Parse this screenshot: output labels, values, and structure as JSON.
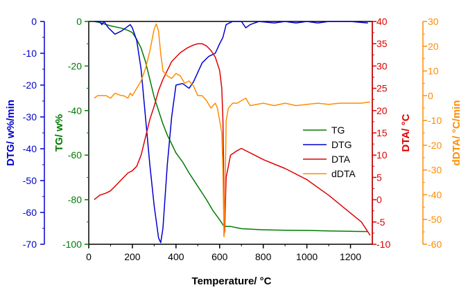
{
  "chart_data": {
    "type": "line",
    "title": "",
    "xlabel": "Temperature/ °C",
    "xlim": [
      0,
      1300
    ],
    "x_ticks": [
      "0",
      "200",
      "400",
      "600",
      "800",
      "1000",
      "1200"
    ],
    "grid": false,
    "legend_position": "center-right",
    "axes": [
      {
        "id": "dtg",
        "label": "DTG/ w%/min",
        "side": "left",
        "color": "#0000cc",
        "range": [
          -70,
          0
        ],
        "ticks": [
          "0",
          "-10",
          "-20",
          "-30",
          "-40",
          "-50",
          "-60",
          "-70"
        ]
      },
      {
        "id": "tg",
        "label": "TG/ w%",
        "side": "left",
        "color": "#007a00",
        "range": [
          -100,
          0
        ],
        "ticks": [
          "0",
          "-20",
          "-40",
          "-60",
          "-80",
          "-100"
        ]
      },
      {
        "id": "dta",
        "label": "DTA/ °C",
        "side": "right",
        "color": "#dd0000",
        "range": [
          -10,
          40
        ],
        "ticks": [
          "40",
          "35",
          "30",
          "25",
          "20",
          "15",
          "10",
          "5",
          "0",
          "-5",
          "-10"
        ]
      },
      {
        "id": "ddta",
        "label": "dDTA/ °C/min",
        "side": "right",
        "color": "#ff8c00",
        "range": [
          -60,
          30
        ],
        "ticks": [
          "30",
          "20",
          "10",
          "0",
          "-10",
          "-20",
          "-30",
          "-40",
          "-50",
          "-60"
        ]
      }
    ],
    "series": [
      {
        "name": "TG",
        "axis": "tg",
        "color": "#007a00",
        "points": [
          [
            25,
            0
          ],
          [
            50,
            -0.5
          ],
          [
            100,
            -2
          ],
          [
            150,
            -3
          ],
          [
            180,
            -4
          ],
          [
            200,
            -5
          ],
          [
            220,
            -8
          ],
          [
            240,
            -12
          ],
          [
            260,
            -18
          ],
          [
            280,
            -26
          ],
          [
            300,
            -34
          ],
          [
            320,
            -40
          ],
          [
            340,
            -46
          ],
          [
            360,
            -51
          ],
          [
            380,
            -55
          ],
          [
            400,
            -59
          ],
          [
            430,
            -63
          ],
          [
            460,
            -68
          ],
          [
            500,
            -74
          ],
          [
            540,
            -80
          ],
          [
            570,
            -85
          ],
          [
            600,
            -89
          ],
          [
            620,
            -92
          ],
          [
            650,
            -92
          ],
          [
            700,
            -93
          ],
          [
            800,
            -93.5
          ],
          [
            900,
            -93.7
          ],
          [
            1000,
            -93.8
          ],
          [
            1100,
            -94
          ],
          [
            1200,
            -94.2
          ],
          [
            1280,
            -94.3
          ]
        ]
      },
      {
        "name": "DTG",
        "axis": "dtg",
        "color": "#0000cc",
        "points": [
          [
            25,
            0
          ],
          [
            50,
            0
          ],
          [
            60,
            -1
          ],
          [
            70,
            0
          ],
          [
            90,
            -2
          ],
          [
            120,
            -4
          ],
          [
            150,
            -3
          ],
          [
            170,
            -2
          ],
          [
            190,
            -1
          ],
          [
            200,
            -2
          ],
          [
            220,
            -6
          ],
          [
            240,
            -15
          ],
          [
            260,
            -30
          ],
          [
            280,
            -45
          ],
          [
            300,
            -58
          ],
          [
            320,
            -68
          ],
          [
            330,
            -69.5
          ],
          [
            340,
            -65
          ],
          [
            360,
            -45
          ],
          [
            380,
            -30
          ],
          [
            400,
            -20
          ],
          [
            430,
            -19.5
          ],
          [
            460,
            -21
          ],
          [
            480,
            -19
          ],
          [
            500,
            -16
          ],
          [
            520,
            -13
          ],
          [
            550,
            -11
          ],
          [
            580,
            -10
          ],
          [
            600,
            -7
          ],
          [
            615,
            -5
          ],
          [
            630,
            -1
          ],
          [
            660,
            0
          ],
          [
            700,
            0
          ],
          [
            720,
            -2
          ],
          [
            740,
            -1
          ],
          [
            780,
            0
          ],
          [
            850,
            -0.5
          ],
          [
            900,
            0
          ],
          [
            950,
            -0.5
          ],
          [
            1000,
            0
          ],
          [
            1050,
            -0.5
          ],
          [
            1100,
            0
          ],
          [
            1200,
            0
          ],
          [
            1280,
            -0.5
          ]
        ]
      },
      {
        "name": "DTA",
        "axis": "dta",
        "color": "#dd0000",
        "points": [
          [
            25,
            0
          ],
          [
            50,
            1
          ],
          [
            80,
            1.5
          ],
          [
            100,
            2
          ],
          [
            130,
            3.5
          ],
          [
            160,
            5
          ],
          [
            180,
            6
          ],
          [
            200,
            6.5
          ],
          [
            220,
            7.5
          ],
          [
            240,
            10
          ],
          [
            260,
            14
          ],
          [
            280,
            18
          ],
          [
            300,
            21
          ],
          [
            320,
            24.5
          ],
          [
            340,
            27
          ],
          [
            360,
            29
          ],
          [
            380,
            31
          ],
          [
            400,
            32
          ],
          [
            420,
            33
          ],
          [
            450,
            34
          ],
          [
            480,
            34.7
          ],
          [
            500,
            35
          ],
          [
            520,
            35
          ],
          [
            540,
            34.5
          ],
          [
            560,
            33.5
          ],
          [
            580,
            32
          ],
          [
            600,
            29
          ],
          [
            610,
            25
          ],
          [
            615,
            18
          ],
          [
            618,
            9
          ],
          [
            620,
            -8
          ],
          [
            623,
            -7
          ],
          [
            630,
            5
          ],
          [
            650,
            10
          ],
          [
            680,
            11
          ],
          [
            700,
            11.5
          ],
          [
            800,
            9
          ],
          [
            900,
            7
          ],
          [
            1000,
            4.5
          ],
          [
            1100,
            1
          ],
          [
            1200,
            -3
          ],
          [
            1250,
            -5
          ],
          [
            1290,
            -8
          ]
        ]
      },
      {
        "name": "dDTA",
        "axis": "ddta",
        "color": "#ff8c00",
        "points": [
          [
            25,
            -1
          ],
          [
            40,
            0
          ],
          [
            60,
            0
          ],
          [
            80,
            0
          ],
          [
            100,
            -1
          ],
          [
            120,
            1
          ],
          [
            150,
            0
          ],
          [
            160,
            0
          ],
          [
            180,
            -1
          ],
          [
            190,
            1
          ],
          [
            200,
            0
          ],
          [
            220,
            3
          ],
          [
            240,
            6
          ],
          [
            260,
            11
          ],
          [
            280,
            18
          ],
          [
            300,
            27
          ],
          [
            310,
            29
          ],
          [
            320,
            26
          ],
          [
            330,
            17
          ],
          [
            340,
            10
          ],
          [
            360,
            8
          ],
          [
            380,
            7
          ],
          [
            400,
            9
          ],
          [
            420,
            8
          ],
          [
            440,
            5
          ],
          [
            460,
            6
          ],
          [
            480,
            4
          ],
          [
            500,
            0
          ],
          [
            520,
            0
          ],
          [
            540,
            -2
          ],
          [
            560,
            -5
          ],
          [
            570,
            -4
          ],
          [
            580,
            -3
          ],
          [
            590,
            -5
          ],
          [
            600,
            -10
          ],
          [
            610,
            -15
          ],
          [
            615,
            -30
          ],
          [
            620,
            -57
          ],
          [
            625,
            -40
          ],
          [
            630,
            -10
          ],
          [
            640,
            -5
          ],
          [
            660,
            -3
          ],
          [
            680,
            -3
          ],
          [
            700,
            -2
          ],
          [
            720,
            -1
          ],
          [
            740,
            -4
          ],
          [
            800,
            -3
          ],
          [
            850,
            -4
          ],
          [
            900,
            -3
          ],
          [
            950,
            -4
          ],
          [
            1000,
            -3.5
          ],
          [
            1050,
            -3
          ],
          [
            1100,
            -3.5
          ],
          [
            1150,
            -3
          ],
          [
            1200,
            -3
          ],
          [
            1250,
            -3
          ],
          [
            1290,
            -2.5
          ]
        ]
      }
    ]
  }
}
